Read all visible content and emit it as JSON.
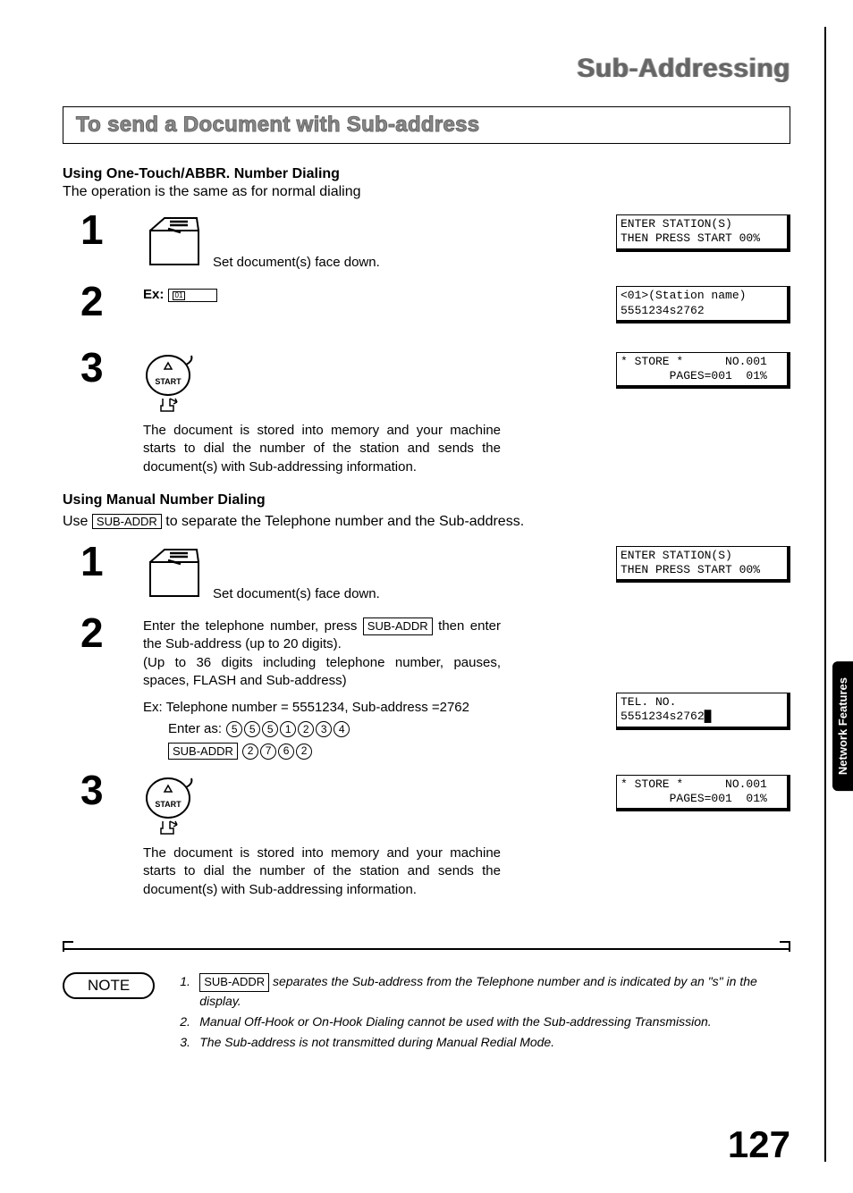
{
  "chapter": {
    "title": "Sub-Addressing"
  },
  "section": {
    "title": "To send a Document with Sub-address"
  },
  "onetouch": {
    "heading": "Using One-Touch/ABBR. Number Dialing",
    "subtext": "The operation is the same as for normal dialing",
    "step1": {
      "num": "1",
      "text": "Set document(s) face down."
    },
    "step2": {
      "num": "2",
      "ex_label": "Ex:",
      "key": "01"
    },
    "step3": {
      "num": "3",
      "text": "The document is stored into memory and your machine starts to dial the number of the station and sends the document(s) with Sub-addressing information."
    },
    "lcd1": "ENTER STATION(S)\nTHEN PRESS START 00%",
    "lcd2": "<01>(Station name)\n5551234s2762",
    "lcd3": "* STORE *      NO.001\n       PAGES=001  01%"
  },
  "manual": {
    "heading": "Using Manual Number Dialing",
    "use_pre": "Use ",
    "subaddr_key": "SUB-ADDR",
    "use_post": " to separate the Telephone number and the Sub-address.",
    "step1": {
      "num": "1",
      "text": "Set document(s) face down."
    },
    "step2": {
      "num": "2",
      "text1": "Enter the telephone number, press ",
      "text2": " then enter the Sub-address (up to 20 digits).",
      "text3": "(Up to 36 digits including telephone number, pauses, spaces, FLASH and Sub-address)",
      "ex_line": "Ex: Telephone number = 5551234, Sub-address =2762",
      "enter_as": "Enter as:",
      "digits1": [
        "5",
        "5",
        "5",
        "1",
        "2",
        "3",
        "4"
      ],
      "digits2": [
        "2",
        "7",
        "6",
        "2"
      ]
    },
    "step3": {
      "num": "3",
      "text": "The document is stored into memory and your machine starts to dial the number of the station and sends the document(s) with Sub-addressing information."
    },
    "lcd1": "ENTER STATION(S)\nTHEN PRESS START 00%",
    "lcd2": "TEL. NO.\n5551234s2762█",
    "lcd3": "* STORE *      NO.001\n       PAGES=001  01%"
  },
  "notes": {
    "label": "NOTE",
    "items": [
      {
        "num": "1.",
        "pre": "",
        "key": "SUB-ADDR",
        "post": " separates the Sub-address from the Telephone number and is indicated by an \"s\" in the display."
      },
      {
        "num": "2.",
        "text": "Manual Off-Hook or On-Hook Dialing cannot be used with the Sub-addressing Transmission."
      },
      {
        "num": "3.",
        "text": "The Sub-address is not transmitted during Manual Redial Mode."
      }
    ]
  },
  "side_tab": "Network Features",
  "page_number": "127",
  "icons": {
    "start_label": "START"
  }
}
